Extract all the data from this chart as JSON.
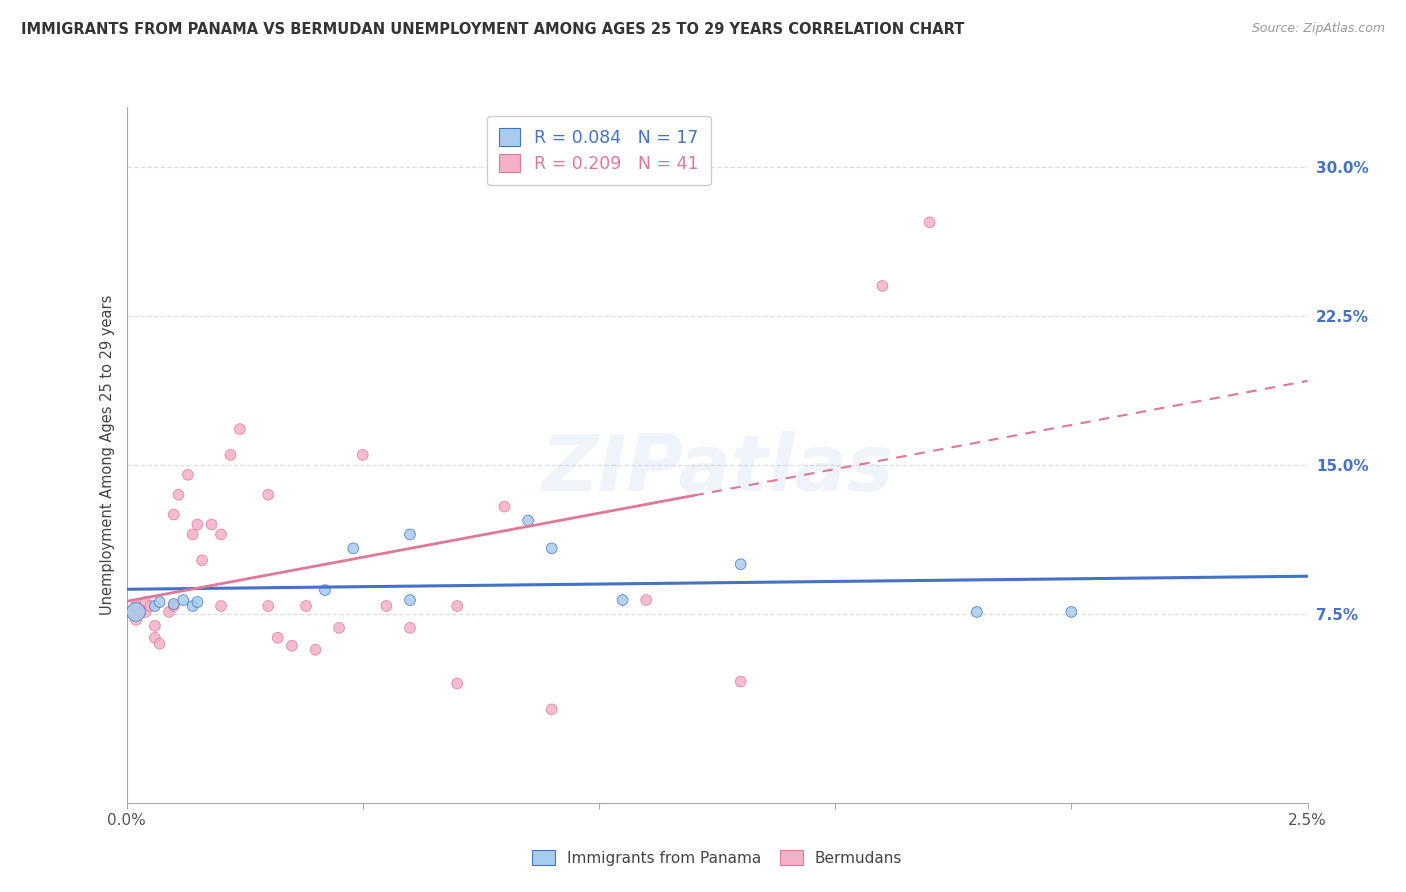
{
  "title": "IMMIGRANTS FROM PANAMA VS BERMUDAN UNEMPLOYMENT AMONG AGES 25 TO 29 YEARS CORRELATION CHART",
  "source": "Source: ZipAtlas.com",
  "ylabel": "Unemployment Among Ages 25 to 29 years",
  "right_ytick_vals": [
    0.075,
    0.15,
    0.225,
    0.3
  ],
  "right_ytick_labels": [
    "7.5%",
    "15.0%",
    "22.5%",
    "30.0%"
  ],
  "xlim": [
    0.0,
    0.025
  ],
  "ylim": [
    -0.02,
    0.33
  ],
  "legend_blue_r": "R = 0.084",
  "legend_blue_n": "N = 17",
  "legend_pink_r": "R = 0.209",
  "legend_pink_n": "N = 41",
  "color_blue_fill": "#A8CCEE",
  "color_blue_edge": "#4472C4",
  "color_pink_fill": "#F4B0C8",
  "color_pink_edge": "#E07898",
  "color_blue_line": "#4472C4",
  "color_pink_line": "#E07898",
  "color_grid": "#DDDDDD",
  "watermark_text": "ZIPatlas",
  "blue_x": [
    0.0002,
    0.0006,
    0.0007,
    0.001,
    0.0012,
    0.0014,
    0.0015,
    0.0042,
    0.0048,
    0.006,
    0.006,
    0.0085,
    0.009,
    0.0105,
    0.013,
    0.018,
    0.02
  ],
  "blue_y": [
    0.076,
    0.079,
    0.081,
    0.08,
    0.082,
    0.079,
    0.081,
    0.087,
    0.108,
    0.115,
    0.082,
    0.122,
    0.108,
    0.082,
    0.1,
    0.076,
    0.076
  ],
  "blue_s": [
    180,
    60,
    60,
    60,
    60,
    60,
    60,
    60,
    60,
    60,
    60,
    60,
    60,
    60,
    60,
    60,
    60
  ],
  "pink_x": [
    0.0001,
    0.0002,
    0.0002,
    0.0003,
    0.0004,
    0.0004,
    0.0005,
    0.0006,
    0.0006,
    0.0007,
    0.0009,
    0.001,
    0.001,
    0.0011,
    0.0013,
    0.0014,
    0.0015,
    0.0016,
    0.0018,
    0.002,
    0.002,
    0.0022,
    0.0024,
    0.003,
    0.003,
    0.0032,
    0.0035,
    0.0038,
    0.004,
    0.0045,
    0.005,
    0.0055,
    0.006,
    0.007,
    0.007,
    0.008,
    0.009,
    0.011,
    0.013,
    0.016,
    0.017
  ],
  "pink_y": [
    0.076,
    0.079,
    0.072,
    0.076,
    0.081,
    0.076,
    0.079,
    0.069,
    0.063,
    0.06,
    0.076,
    0.079,
    0.125,
    0.135,
    0.145,
    0.115,
    0.12,
    0.102,
    0.12,
    0.115,
    0.079,
    0.155,
    0.168,
    0.079,
    0.135,
    0.063,
    0.059,
    0.079,
    0.057,
    0.068,
    0.155,
    0.079,
    0.068,
    0.04,
    0.079,
    0.129,
    0.027,
    0.082,
    0.041,
    0.24,
    0.272
  ],
  "pink_s": [
    60,
    60,
    60,
    60,
    60,
    60,
    60,
    60,
    60,
    60,
    60,
    60,
    60,
    60,
    60,
    60,
    60,
    60,
    60,
    60,
    60,
    60,
    60,
    60,
    60,
    60,
    60,
    60,
    60,
    60,
    60,
    60,
    60,
    60,
    60,
    60,
    60,
    60,
    60,
    60,
    60
  ],
  "grid_yticks": [
    0.075,
    0.15,
    0.225,
    0.3
  ],
  "xtick_positions": [
    0.0,
    0.005,
    0.01,
    0.015,
    0.02,
    0.025
  ]
}
